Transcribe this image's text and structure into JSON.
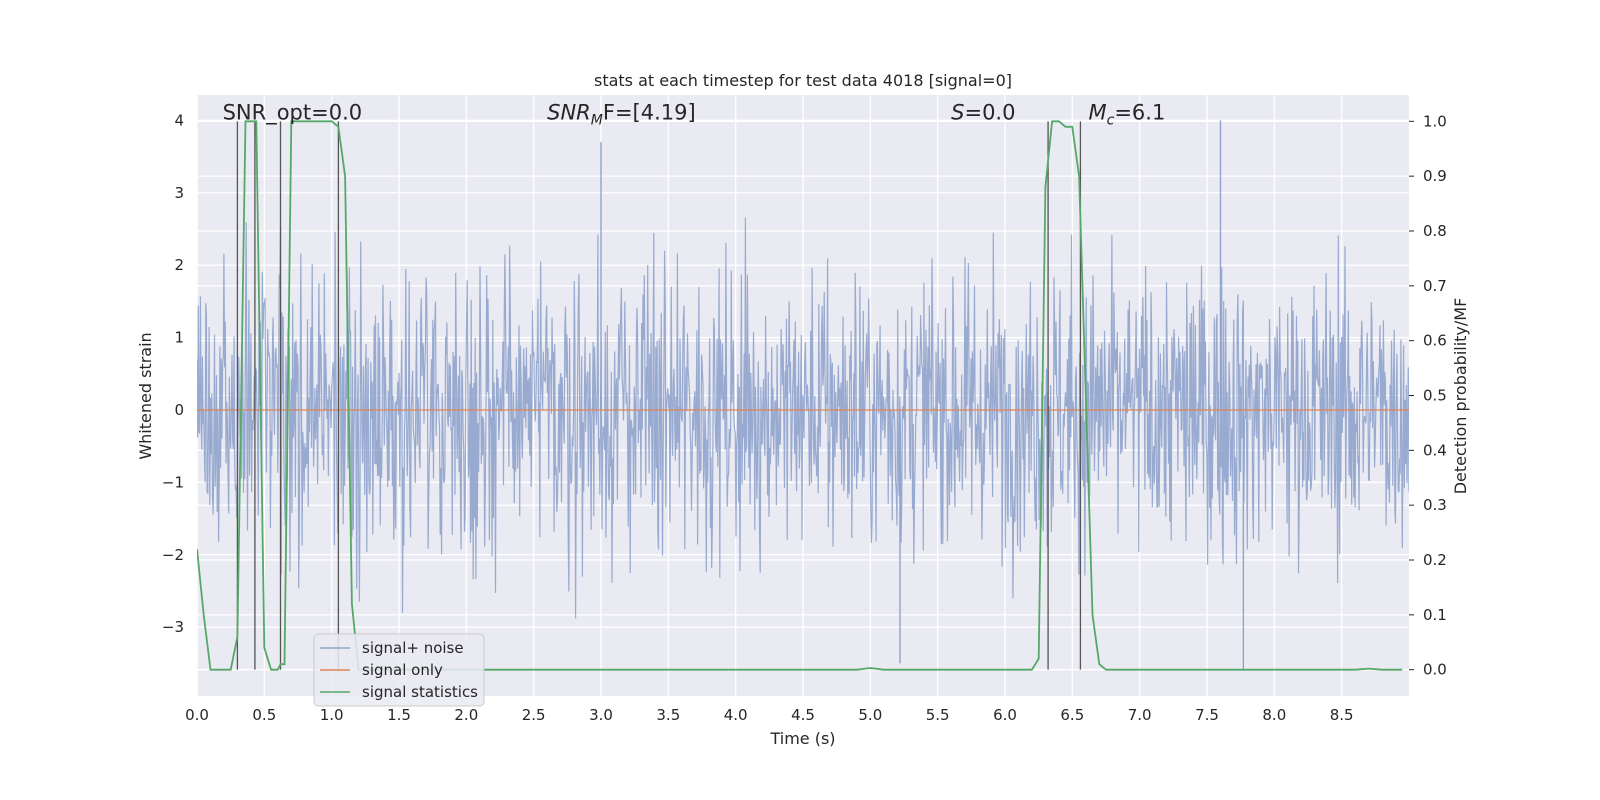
{
  "chart_data": {
    "type": "line",
    "title": "stats at each timestep for test data 4018 [signal=0]",
    "xlabel": "Time (s)",
    "ylabel": "Whitened strain",
    "ylabel_right": "Detection probability/MF",
    "xlim": [
      0.0,
      9.0
    ],
    "ylim": [
      -3.95,
      4.35
    ],
    "ylim_right": [
      -0.048,
      1.048
    ],
    "xticks": [
      0.0,
      0.5,
      1.0,
      1.5,
      2.0,
      2.5,
      3.0,
      3.5,
      4.0,
      4.5,
      5.0,
      5.5,
      6.0,
      6.5,
      7.0,
      7.5,
      8.0,
      8.5
    ],
    "xtick_labels": [
      "0.0",
      "0.5",
      "1.0",
      "1.5",
      "2.0",
      "2.5",
      "3.0",
      "3.5",
      "4.0",
      "4.5",
      "5.0",
      "5.5",
      "6.0",
      "6.5",
      "7.0",
      "7.5",
      "8.0",
      "8.5"
    ],
    "yticks": [
      -3,
      -2,
      -1,
      0,
      1,
      2,
      3,
      4
    ],
    "ytick_labels": [
      "−3",
      "−2",
      "−1",
      "0",
      "1",
      "2",
      "3",
      "4"
    ],
    "yticks_right": [
      0.0,
      0.1,
      0.2,
      0.3,
      0.4,
      0.5,
      0.6,
      0.7,
      0.8,
      0.9,
      1.0
    ],
    "ytick_labels_right": [
      "0.0",
      "0.1",
      "0.2",
      "0.3",
      "0.4",
      "0.5",
      "0.6",
      "0.7",
      "0.8",
      "0.9",
      "1.0"
    ],
    "grid": true,
    "legend_position": "lower-left",
    "series": [
      {
        "name": "signal+ noise",
        "color": "#8fa3cc",
        "kind": "noise",
        "typical_amplitude": 1.2,
        "peak_values": [
          {
            "x": 3.0,
            "y": 3.7
          },
          {
            "x": 7.6,
            "y": 4.0
          },
          {
            "x": 7.77,
            "y": -3.6
          },
          {
            "x": 5.22,
            "y": -3.5
          }
        ]
      },
      {
        "name": "signal only",
        "color": "#dd8452",
        "x": [
          0.0,
          9.0
        ],
        "y": [
          0.0,
          0.0
        ]
      },
      {
        "name": "signal statistics",
        "color": "#55a868",
        "axis": "right",
        "x": [
          0.0,
          0.05,
          0.1,
          0.25,
          0.3,
          0.36,
          0.4,
          0.44,
          0.5,
          0.55,
          0.6,
          0.62,
          0.65,
          0.7,
          0.75,
          1.0,
          1.05,
          1.1,
          1.15,
          1.2,
          1.25,
          1.3,
          4.9,
          5.0,
          5.1,
          6.2,
          6.25,
          6.3,
          6.35,
          6.4,
          6.45,
          6.5,
          6.55,
          6.6,
          6.65,
          6.7,
          6.75,
          8.6,
          8.7,
          8.8,
          8.95
        ],
        "y": [
          0.22,
          0.1,
          0.0,
          0.0,
          0.06,
          1.0,
          1.0,
          1.0,
          0.04,
          0.0,
          0.0,
          0.01,
          0.01,
          1.0,
          1.0,
          1.0,
          0.99,
          0.9,
          0.12,
          0.0,
          0.0,
          0.0,
          0.0,
          0.003,
          0.0,
          0.0,
          0.02,
          0.88,
          1.0,
          1.0,
          0.99,
          0.99,
          0.9,
          0.5,
          0.1,
          0.01,
          0.0,
          0.0,
          0.002,
          0.0,
          0.0
        ]
      }
    ],
    "vlines": [
      0.3,
      0.43,
      0.62,
      1.05,
      6.32,
      6.56
    ],
    "annotations": [
      {
        "text": "SNR_opt=0.0",
        "x": 0.19,
        "y": 4.05
      },
      {
        "text": "SNR",
        "sub": "M",
        "rest": "F=[4.19]",
        "x": 2.6,
        "y": 4.05
      },
      {
        "text": "S",
        "rest": "=0.0",
        "x": 5.6,
        "y": 4.05
      },
      {
        "text": "M",
        "sub": "c",
        "rest": "=6.1",
        "x": 6.62,
        "y": 4.05
      }
    ]
  }
}
